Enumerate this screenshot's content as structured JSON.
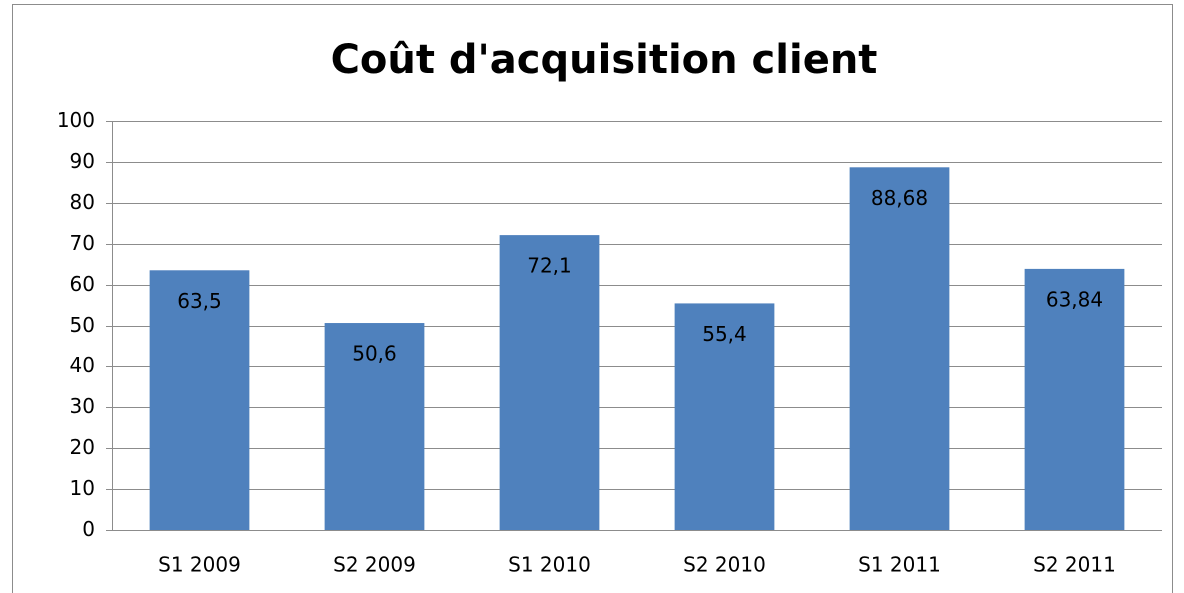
{
  "chart_data": {
    "type": "bar",
    "title": "Coût d'acquisition client",
    "categories": [
      "S1 2009",
      "S2 2009",
      "S1 2010",
      "S2 2010",
      "S1 2011",
      "S2 2011"
    ],
    "values": [
      63.5,
      50.6,
      72.1,
      55.4,
      88.68,
      63.84
    ],
    "value_labels": [
      "63,5",
      "50,6",
      "72,1",
      "55,4",
      "88,68",
      "63,84"
    ],
    "color": "#4f81bd",
    "ylim": [
      0,
      100
    ],
    "yticks": [
      0,
      10,
      20,
      30,
      40,
      50,
      60,
      70,
      80,
      90,
      100
    ],
    "grid": true
  }
}
